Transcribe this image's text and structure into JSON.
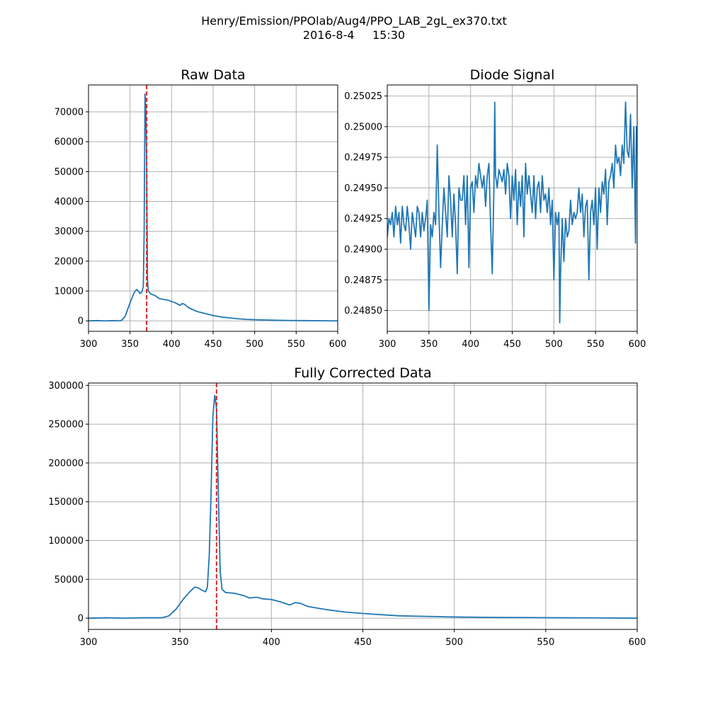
{
  "figure": {
    "title_line1": "Henry/Emission/PPOlab/Aug4/PPO_LAB_2gL_ex370.txt",
    "title_line2": "2016-8-4     15:30",
    "colors": {
      "series": "#1f77b4",
      "marker": "#d62728",
      "grid": "#b0b0b0"
    }
  },
  "chart_data": [
    {
      "id": "raw",
      "type": "line",
      "title": "Raw Data",
      "xlabel": "",
      "ylabel": "",
      "xlim": [
        300,
        600
      ],
      "ylim": [
        -3500,
        79000
      ],
      "xticks": [
        300,
        350,
        400,
        450,
        500,
        550,
        600
      ],
      "yticks": [
        0,
        10000,
        20000,
        30000,
        40000,
        50000,
        60000,
        70000
      ],
      "ytick_labels": [
        "0",
        "10000",
        "20000",
        "30000",
        "40000",
        "50000",
        "60000",
        "70000"
      ],
      "grid": true,
      "marker_x": 370,
      "series": [
        {
          "points": [
            [
              300,
              0
            ],
            [
              310,
              100
            ],
            [
              320,
              0
            ],
            [
              330,
              100
            ],
            [
              335,
              0
            ],
            [
              340,
              200
            ],
            [
              344,
              1500
            ],
            [
              348,
              4500
            ],
            [
              352,
              7500
            ],
            [
              355,
              9500
            ],
            [
              358,
              10500
            ],
            [
              360,
              10000
            ],
            [
              362,
              9200
            ],
            [
              364,
              9500
            ],
            [
              366,
              11500
            ],
            [
              367,
              30000
            ],
            [
              368,
              76000
            ],
            [
              369,
              70000
            ],
            [
              370,
              52000
            ],
            [
              371,
              14000
            ],
            [
              372,
              10000
            ],
            [
              375,
              9000
            ],
            [
              380,
              8500
            ],
            [
              385,
              7500
            ],
            [
              390,
              7200
            ],
            [
              395,
              7000
            ],
            [
              400,
              6500
            ],
            [
              405,
              6000
            ],
            [
              410,
              5200
            ],
            [
              413,
              5800
            ],
            [
              416,
              5500
            ],
            [
              420,
              4500
            ],
            [
              430,
              3200
            ],
            [
              440,
              2500
            ],
            [
              450,
              1800
            ],
            [
              460,
              1300
            ],
            [
              470,
              1000
            ],
            [
              480,
              700
            ],
            [
              490,
              500
            ],
            [
              500,
              400
            ],
            [
              520,
              250
            ],
            [
              540,
              150
            ],
            [
              560,
              100
            ],
            [
              580,
              50
            ],
            [
              600,
              0
            ]
          ]
        }
      ]
    },
    {
      "id": "diode",
      "type": "line",
      "title": "Diode Signal",
      "xlabel": "",
      "ylabel": "",
      "xlim": [
        300,
        600
      ],
      "ylim": [
        0.24833,
        0.25034
      ],
      "xticks": [
        300,
        350,
        400,
        450,
        500,
        550,
        600
      ],
      "yticks": [
        0.2485,
        0.24875,
        0.249,
        0.24925,
        0.2495,
        0.24975,
        0.25,
        0.25025
      ],
      "ytick_labels": [
        "0.24850",
        "0.24875",
        "0.24900",
        "0.24925",
        "0.24950",
        "0.24975",
        "0.25000",
        "0.25025"
      ],
      "grid": true,
      "series": [
        {
          "points": [
            [
              300,
              0.2491
            ],
            [
              302,
              0.24925
            ],
            [
              304,
              0.2492
            ],
            [
              306,
              0.2493
            ],
            [
              308,
              0.2491
            ],
            [
              310,
              0.24935
            ],
            [
              312,
              0.2492
            ],
            [
              314,
              0.2493
            ],
            [
              316,
              0.24905
            ],
            [
              318,
              0.24935
            ],
            [
              320,
              0.2492
            ],
            [
              322,
              0.24915
            ],
            [
              324,
              0.24935
            ],
            [
              326,
              0.2492
            ],
            [
              328,
              0.249
            ],
            [
              330,
              0.2493
            ],
            [
              332,
              0.2492
            ],
            [
              334,
              0.2491
            ],
            [
              336,
              0.24935
            ],
            [
              338,
              0.2493
            ],
            [
              340,
              0.2491
            ],
            [
              342,
              0.2493
            ],
            [
              344,
              0.24915
            ],
            [
              346,
              0.24925
            ],
            [
              348,
              0.2494
            ],
            [
              350,
              0.2485
            ],
            [
              352,
              0.2492
            ],
            [
              354,
              0.2491
            ],
            [
              356,
              0.2493
            ],
            [
              358,
              0.2492
            ],
            [
              360,
              0.24985
            ],
            [
              362,
              0.2493
            ],
            [
              364,
              0.24885
            ],
            [
              366,
              0.2492
            ],
            [
              368,
              0.2495
            ],
            [
              370,
              0.2493
            ],
            [
              372,
              0.2491
            ],
            [
              374,
              0.2496
            ],
            [
              376,
              0.2494
            ],
            [
              378,
              0.2491
            ],
            [
              380,
              0.24945
            ],
            [
              382,
              0.2492
            ],
            [
              384,
              0.2488
            ],
            [
              386,
              0.2495
            ],
            [
              388,
              0.2494
            ],
            [
              390,
              0.2494
            ],
            [
              392,
              0.2496
            ],
            [
              394,
              0.2492
            ],
            [
              396,
              0.2496
            ],
            [
              398,
              0.24885
            ],
            [
              400,
              0.2495
            ],
            [
              402,
              0.24955
            ],
            [
              404,
              0.2493
            ],
            [
              406,
              0.2496
            ],
            [
              408,
              0.2495
            ],
            [
              410,
              0.2497
            ],
            [
              412,
              0.2496
            ],
            [
              414,
              0.2495
            ],
            [
              416,
              0.2496
            ],
            [
              418,
              0.24935
            ],
            [
              420,
              0.2496
            ],
            [
              422,
              0.2497
            ],
            [
              424,
              0.2492
            ],
            [
              426,
              0.2488
            ],
            [
              428,
              0.2495
            ],
            [
              429,
              0.2502
            ],
            [
              430,
              0.2496
            ],
            [
              432,
              0.2495
            ],
            [
              434,
              0.24965
            ],
            [
              436,
              0.2496
            ],
            [
              438,
              0.24955
            ],
            [
              440,
              0.24965
            ],
            [
              442,
              0.24945
            ],
            [
              444,
              0.2497
            ],
            [
              446,
              0.2496
            ],
            [
              448,
              0.24925
            ],
            [
              450,
              0.2496
            ],
            [
              452,
              0.2494
            ],
            [
              454,
              0.24965
            ],
            [
              456,
              0.2492
            ],
            [
              458,
              0.24955
            ],
            [
              460,
              0.24935
            ],
            [
              462,
              0.2496
            ],
            [
              464,
              0.2491
            ],
            [
              466,
              0.2497
            ],
            [
              468,
              0.24945
            ],
            [
              470,
              0.2496
            ],
            [
              472,
              0.24945
            ],
            [
              474,
              0.2493
            ],
            [
              476,
              0.2496
            ],
            [
              478,
              0.24925
            ],
            [
              480,
              0.2495
            ],
            [
              482,
              0.24955
            ],
            [
              484,
              0.2493
            ],
            [
              486,
              0.2496
            ],
            [
              488,
              0.2494
            ],
            [
              490,
              0.24945
            ],
            [
              492,
              0.2493
            ],
            [
              494,
              0.2495
            ],
            [
              496,
              0.2492
            ],
            [
              498,
              0.2494
            ],
            [
              500,
              0.24875
            ],
            [
              502,
              0.2493
            ],
            [
              504,
              0.2492
            ],
            [
              506,
              0.2493
            ],
            [
              507,
              0.2484
            ],
            [
              508,
              0.2488
            ],
            [
              510,
              0.24925
            ],
            [
              512,
              0.2489
            ],
            [
              514,
              0.24925
            ],
            [
              516,
              0.2491
            ],
            [
              518,
              0.24915
            ],
            [
              520,
              0.2494
            ],
            [
              522,
              0.2492
            ],
            [
              524,
              0.2493
            ],
            [
              526,
              0.24925
            ],
            [
              528,
              0.2493
            ],
            [
              530,
              0.2495
            ],
            [
              532,
              0.2493
            ],
            [
              534,
              0.24945
            ],
            [
              536,
              0.2491
            ],
            [
              538,
              0.24935
            ],
            [
              540,
              0.2494
            ],
            [
              542,
              0.24875
            ],
            [
              544,
              0.2493
            ],
            [
              546,
              0.2494
            ],
            [
              548,
              0.2492
            ],
            [
              550,
              0.2495
            ],
            [
              552,
              0.249
            ],
            [
              554,
              0.2495
            ],
            [
              556,
              0.2493
            ],
            [
              558,
              0.24955
            ],
            [
              560,
              0.24945
            ],
            [
              562,
              0.24965
            ],
            [
              564,
              0.2492
            ],
            [
              566,
              0.24955
            ],
            [
              568,
              0.2496
            ],
            [
              570,
              0.2497
            ],
            [
              572,
              0.2495
            ],
            [
              574,
              0.24985
            ],
            [
              576,
              0.2497
            ],
            [
              578,
              0.24975
            ],
            [
              580,
              0.2496
            ],
            [
              582,
              0.24985
            ],
            [
              584,
              0.2497
            ],
            [
              586,
              0.2502
            ],
            [
              588,
              0.2498
            ],
            [
              590,
              0.24975
            ],
            [
              592,
              0.2501
            ],
            [
              594,
              0.2495
            ],
            [
              596,
              0.25
            ],
            [
              598,
              0.24905
            ],
            [
              599,
              0.25
            ],
            [
              600,
              0.2499
            ]
          ]
        }
      ]
    },
    {
      "id": "corrected",
      "type": "line",
      "title": "Fully Corrected Data",
      "xlabel": "",
      "ylabel": "",
      "xlim": [
        300,
        600
      ],
      "ylim": [
        -14500,
        303000
      ],
      "xticks": [
        300,
        350,
        400,
        450,
        500,
        550,
        600
      ],
      "yticks": [
        0,
        50000,
        100000,
        150000,
        200000,
        250000,
        300000
      ],
      "ytick_labels": [
        "0",
        "50000",
        "100000",
        "150000",
        "200000",
        "250000",
        "300000"
      ],
      "grid": true,
      "marker_x": 370,
      "series": [
        {
          "points": [
            [
              300,
              0
            ],
            [
              310,
              500
            ],
            [
              320,
              0
            ],
            [
              330,
              500
            ],
            [
              340,
              500
            ],
            [
              344,
              3000
            ],
            [
              348,
              12000
            ],
            [
              352,
              25000
            ],
            [
              355,
              33000
            ],
            [
              358,
              40000
            ],
            [
              360,
              39000
            ],
            [
              362,
              36000
            ],
            [
              364,
              34000
            ],
            [
              365,
              40000
            ],
            [
              366,
              80000
            ],
            [
              367,
              160000
            ],
            [
              368,
              260000
            ],
            [
              369,
              287000
            ],
            [
              370,
              270000
            ],
            [
              371,
              160000
            ],
            [
              372,
              60000
            ],
            [
              373,
              37000
            ],
            [
              375,
              33000
            ],
            [
              380,
              32000
            ],
            [
              385,
              29000
            ],
            [
              388,
              26000
            ],
            [
              392,
              27000
            ],
            [
              395,
              25000
            ],
            [
              400,
              24000
            ],
            [
              405,
              21000
            ],
            [
              410,
              17000
            ],
            [
              413,
              20000
            ],
            [
              416,
              19000
            ],
            [
              420,
              15000
            ],
            [
              425,
              13000
            ],
            [
              430,
              11000
            ],
            [
              440,
              8000
            ],
            [
              450,
              6000
            ],
            [
              460,
              4500
            ],
            [
              470,
              3000
            ],
            [
              480,
              2500
            ],
            [
              490,
              2000
            ],
            [
              500,
              1500
            ],
            [
              520,
              1000
            ],
            [
              540,
              800
            ],
            [
              560,
              500
            ],
            [
              580,
              300
            ],
            [
              600,
              0
            ]
          ]
        }
      ]
    }
  ]
}
